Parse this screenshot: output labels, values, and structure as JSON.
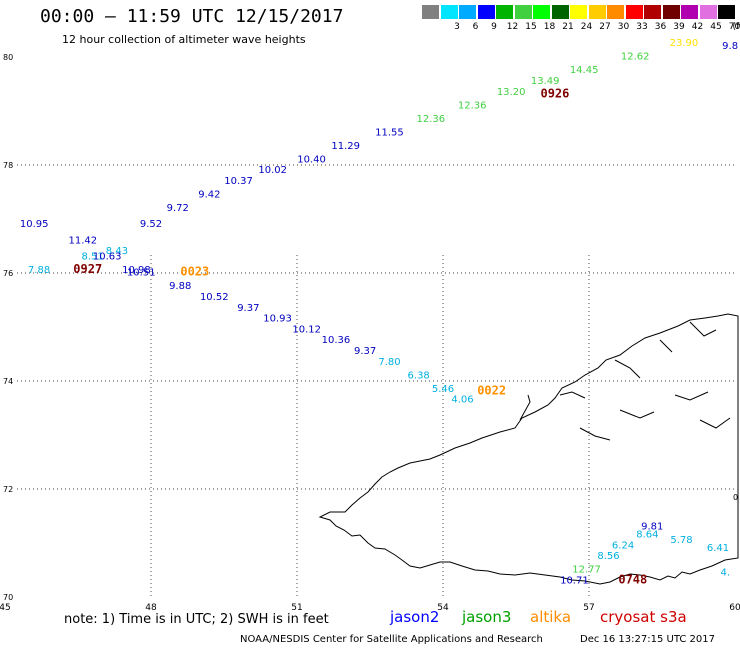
{
  "header": {
    "title": "00:00 – 11:59 UTC 12/15/2017",
    "subtitle": "12 hour collection of altimeter wave heights"
  },
  "colorbar": {
    "unit": "(ft)",
    "bins": [
      {
        "label": "",
        "color": "#808080"
      },
      {
        "label": "3",
        "color": "#00e5ff"
      },
      {
        "label": "6",
        "color": "#00aaff"
      },
      {
        "label": "9",
        "color": "#0000ff"
      },
      {
        "label": "12",
        "color": "#00b400"
      },
      {
        "label": "15",
        "color": "#40d040"
      },
      {
        "label": "18",
        "color": "#00ff00"
      },
      {
        "label": "21",
        "color": "#006400"
      },
      {
        "label": "24",
        "color": "#ffff00"
      },
      {
        "label": "27",
        "color": "#ffcc00"
      },
      {
        "label": "30",
        "color": "#ff8c00"
      },
      {
        "label": "33",
        "color": "#ff0000"
      },
      {
        "label": "36",
        "color": "#b00000"
      },
      {
        "label": "39",
        "color": "#700000"
      },
      {
        "label": "42",
        "color": "#b000b0"
      },
      {
        "label": "45",
        "color": "#e070e0"
      },
      {
        "label": "70",
        "color": "#000000"
      }
    ]
  },
  "notes": {
    "note": "note:  1) Time is in UTC;  2) SWH is in feet",
    "satellites": [
      {
        "name": "jason2",
        "color": "#0000ff"
      },
      {
        "name": "jason3",
        "color": "#00a000"
      },
      {
        "name": "altika",
        "color": "#ff8c00"
      },
      {
        "name": "cryosat s3a",
        "color": "#d00000"
      }
    ],
    "credit": "NOAA/NESDIS Center for Satellite Applications and Research",
    "timestamp": "Dec 16 13:27:15 UTC 2017"
  },
  "chart_data": {
    "type": "scatter",
    "xlim": [
      45,
      60
    ],
    "ylim": [
      70,
      80
    ],
    "x_ticks": [
      "45",
      "48",
      "51",
      "54",
      "57",
      "60"
    ],
    "y_ticks": [
      "70",
      "72",
      "74",
      "76",
      "78",
      "80"
    ],
    "right_edge_label": "0",
    "grid": true,
    "points": [
      {
        "x": 45.6,
        "y": 76.85,
        "label": "10.95",
        "color": "#0000c0"
      },
      {
        "x": 46.6,
        "y": 76.55,
        "label": "11.42",
        "color": "#0000c0"
      },
      {
        "x": 47.3,
        "y": 76.35,
        "label": "8.43",
        "color": "#00b0e0"
      },
      {
        "x": 46.8,
        "y": 76.25,
        "label": "8.51",
        "color": "#00b0e0"
      },
      {
        "x": 47.1,
        "y": 76.25,
        "label": "10.63",
        "color": "#0000c0"
      },
      {
        "x": 45.7,
        "y": 76.0,
        "label": "7.88",
        "color": "#00b0e0"
      },
      {
        "x": 47.7,
        "y": 76.0,
        "label": "10.98",
        "color": "#0000c0"
      },
      {
        "x": 48.0,
        "y": 76.85,
        "label": "9.52",
        "color": "#0000c0"
      },
      {
        "x": 48.55,
        "y": 77.15,
        "label": "9.72",
        "color": "#0000c0"
      },
      {
        "x": 49.2,
        "y": 77.4,
        "label": "9.42",
        "color": "#0000c0"
      },
      {
        "x": 49.8,
        "y": 77.65,
        "label": "10.37",
        "color": "#0000c0"
      },
      {
        "x": 50.5,
        "y": 77.85,
        "label": "10.02",
        "color": "#0000c0"
      },
      {
        "x": 51.3,
        "y": 78.05,
        "label": "10.40",
        "color": "#0000c0"
      },
      {
        "x": 52.0,
        "y": 78.3,
        "label": "11.29",
        "color": "#0000c0"
      },
      {
        "x": 52.9,
        "y": 78.55,
        "label": "11.55",
        "color": "#0000c0"
      },
      {
        "x": 53.75,
        "y": 78.8,
        "label": "12.36",
        "color": "#40d040"
      },
      {
        "x": 54.6,
        "y": 79.05,
        "label": "12.36",
        "color": "#40d040"
      },
      {
        "x": 55.4,
        "y": 79.3,
        "label": "13.20",
        "color": "#40d040"
      },
      {
        "x": 56.1,
        "y": 79.5,
        "label": "13.49",
        "color": "#40d040"
      },
      {
        "x": 56.9,
        "y": 79.7,
        "label": "14.45",
        "color": "#40d040"
      },
      {
        "x": 57.95,
        "y": 79.95,
        "label": "12.62",
        "color": "#40d040"
      },
      {
        "x": 58.95,
        "y": 80.2,
        "label": "23.90",
        "color": "#ffe000"
      },
      {
        "x": 47.8,
        "y": 75.95,
        "label": "10.51",
        "color": "#0000c0"
      },
      {
        "x": 48.6,
        "y": 75.7,
        "label": "9.88",
        "color": "#0000c0"
      },
      {
        "x": 49.3,
        "y": 75.5,
        "label": "10.52",
        "color": "#0000c0"
      },
      {
        "x": 50.0,
        "y": 75.3,
        "label": "9.37",
        "color": "#0000c0"
      },
      {
        "x": 50.6,
        "y": 75.1,
        "label": "10.93",
        "color": "#0000c0"
      },
      {
        "x": 51.2,
        "y": 74.9,
        "label": "10.12",
        "color": "#0000c0"
      },
      {
        "x": 51.8,
        "y": 74.7,
        "label": "10.36",
        "color": "#0000c0"
      },
      {
        "x": 52.4,
        "y": 74.5,
        "label": "9.37",
        "color": "#0000c0"
      },
      {
        "x": 52.9,
        "y": 74.3,
        "label": "7.80",
        "color": "#00b0e0"
      },
      {
        "x": 53.5,
        "y": 74.05,
        "label": "6.38",
        "color": "#00b0e0"
      },
      {
        "x": 54.0,
        "y": 73.8,
        "label": "5.46",
        "color": "#00b0e0"
      },
      {
        "x": 54.4,
        "y": 73.6,
        "label": "4.06",
        "color": "#00b0e0"
      },
      {
        "x": 58.3,
        "y": 71.25,
        "label": "9.81",
        "color": "#0000c0"
      },
      {
        "x": 58.2,
        "y": 71.1,
        "label": "8.64",
        "color": "#00b0e0"
      },
      {
        "x": 58.9,
        "y": 71.0,
        "label": "5.78",
        "color": "#00b0e0"
      },
      {
        "x": 57.7,
        "y": 70.9,
        "label": "6.24",
        "color": "#00b0e0"
      },
      {
        "x": 57.4,
        "y": 70.7,
        "label": "8.56",
        "color": "#00b0e0"
      },
      {
        "x": 56.95,
        "y": 70.45,
        "label": "12.77",
        "color": "#40d040"
      },
      {
        "x": 59.65,
        "y": 70.85,
        "label": "6.41",
        "color": "#00b0e0"
      },
      {
        "x": 56.7,
        "y": 70.25,
        "label": "10.71",
        "color": "#0000c0"
      },
      {
        "x": 59.8,
        "y": 70.4,
        "label": "4.",
        "color": "#00b0e0"
      },
      {
        "x": 59.9,
        "y": 80.15,
        "label": "9.8",
        "color": "#0000c0"
      }
    ],
    "pass_times": [
      {
        "x": 46.7,
        "y": 76.0,
        "label": "0927",
        "color": "#800000"
      },
      {
        "x": 48.9,
        "y": 75.95,
        "label": "0023",
        "color": "#ff9000"
      },
      {
        "x": 56.3,
        "y": 79.25,
        "label": "0926",
        "color": "#800000"
      },
      {
        "x": 55.0,
        "y": 73.75,
        "label": "0022",
        "color": "#ff9000"
      },
      {
        "x": 57.9,
        "y": 70.25,
        "label": "0748",
        "color": "#800000"
      }
    ]
  }
}
